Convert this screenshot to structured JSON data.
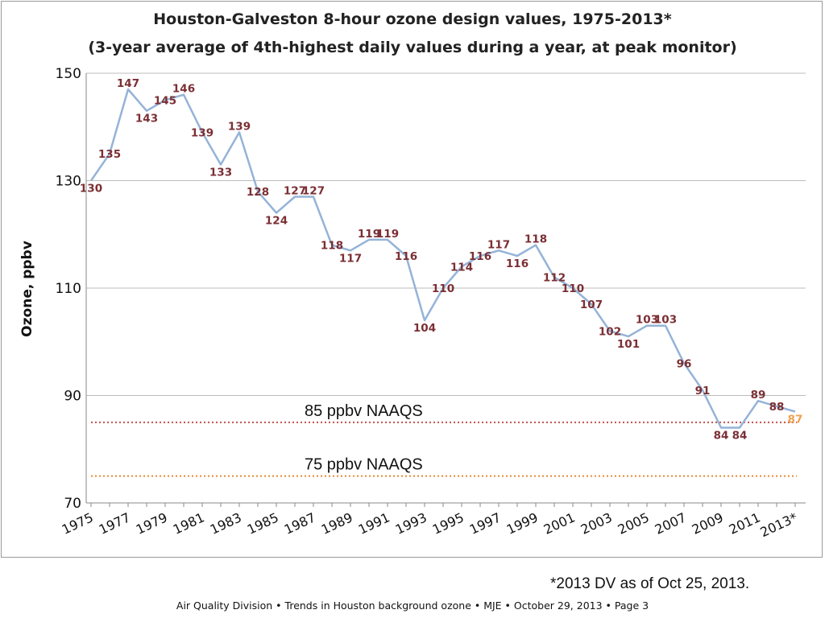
{
  "chart_data": {
    "type": "line",
    "title": "Houston-Galveston 8-hour ozone design values, 1975-2013*",
    "subtitle": "(3-year average of 4th-highest daily values during a year, at peak monitor)",
    "xlabel": "",
    "ylabel": "Ozone, ppbv",
    "ylim": [
      70,
      150
    ],
    "yticks": [
      70,
      90,
      110,
      130,
      150
    ],
    "grid": true,
    "x": [
      "1975",
      "1976",
      "1977",
      "1978",
      "1979",
      "1980",
      "1981",
      "1982",
      "1983",
      "1984",
      "1985",
      "1986",
      "1987",
      "1988",
      "1989",
      "1990",
      "1991",
      "1992",
      "1993",
      "1994",
      "1995",
      "1996",
      "1997",
      "1998",
      "1999",
      "2000",
      "2001",
      "2002",
      "2003",
      "2004",
      "2005",
      "2006",
      "2007",
      "2008",
      "2009",
      "2010",
      "2011",
      "2012",
      "2013*"
    ],
    "xtick_labels": [
      "1975",
      "1977",
      "1979",
      "1981",
      "1983",
      "1985",
      "1987",
      "1989",
      "1991",
      "1993",
      "1995",
      "1997",
      "1999",
      "2001",
      "2003",
      "2005",
      "2007",
      "2009",
      "2011",
      "2013*"
    ],
    "series": [
      {
        "values": [
          130,
          135,
          147,
          143,
          145,
          146,
          139,
          133,
          139,
          128,
          124,
          127,
          127,
          118,
          117,
          119,
          119,
          116,
          104,
          110,
          114,
          116,
          117,
          116,
          118,
          112,
          110,
          107,
          102,
          101,
          103,
          103,
          96,
          91,
          84,
          84,
          89,
          88,
          87
        ],
        "color": "#95b3d7",
        "label_color": "#7b2f34",
        "last_label_color": "#f0a050"
      }
    ],
    "reference_lines": [
      {
        "label": "85 ppbv NAAQS",
        "value": 85,
        "color": "#c0504d"
      },
      {
        "label": "75 ppbv NAAQS",
        "value": 75,
        "color": "#e58a2f"
      }
    ]
  },
  "footnote": "*2013 DV as of Oct 25, 2013.",
  "footer": "Air Quality Division • Trends in Houston background ozone  •  MJE  •  October 29, 2013  •   Page 3"
}
